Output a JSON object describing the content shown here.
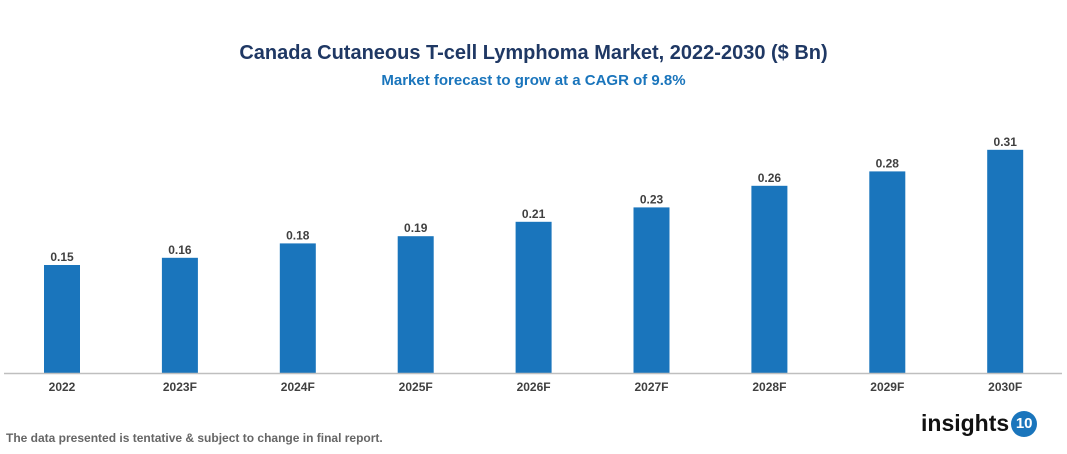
{
  "chart_data": {
    "type": "bar",
    "title": "Canada Cutaneous T-cell Lymphoma Market, 2022-2030 ($ Bn)",
    "subtitle": "Market forecast to grow at a CAGR of 9.8%",
    "categories": [
      "2022",
      "2023F",
      "2024F",
      "2025F",
      "2026F",
      "2027F",
      "2028F",
      "2029F",
      "2030F"
    ],
    "values": [
      0.15,
      0.16,
      0.18,
      0.19,
      0.21,
      0.23,
      0.26,
      0.28,
      0.31
    ],
    "xlabel": "",
    "ylabel": "",
    "grid": false,
    "bar_color": "#1a75bc"
  },
  "footer": {
    "note": "The data presented is tentative & subject to change in final report.",
    "logo_text": "insights",
    "logo_number": "10"
  }
}
